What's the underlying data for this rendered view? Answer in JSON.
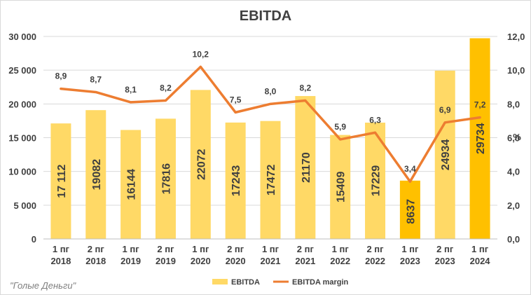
{
  "chart_data": {
    "type": "bar",
    "title": "EBITDA",
    "categories": [
      [
        "1 пг",
        "2018"
      ],
      [
        "2 пг",
        "2018"
      ],
      [
        "1 пг",
        "2019"
      ],
      [
        "2 пг",
        "2019"
      ],
      [
        "1 пг",
        "2020"
      ],
      [
        "2 пг",
        "2020"
      ],
      [
        "1 пг",
        "2021"
      ],
      [
        "2 пг",
        "2021"
      ],
      [
        "1 пг",
        "2022"
      ],
      [
        "2 пг",
        "2022"
      ],
      [
        "1 пг",
        "2023"
      ],
      [
        "2 пг",
        "2023"
      ],
      [
        "1 пг",
        "2024"
      ]
    ],
    "series": [
      {
        "name": "EBITDA",
        "type": "bar",
        "axis": "left",
        "values": [
          17112,
          19082,
          16144,
          17816,
          22072,
          17243,
          17472,
          21170,
          15409,
          17229,
          8637,
          24934,
          29734
        ],
        "labels": [
          "17 112",
          "19082",
          "16144",
          "17816",
          "22072",
          "17243",
          "17472",
          "21170",
          "15409",
          "17229",
          "8637",
          "24934",
          "29734"
        ],
        "color": "#ffd966",
        "highlight_color": "#ffc000",
        "highlight_index": [
          10,
          12
        ]
      },
      {
        "name": "EBITDA margin",
        "type": "line",
        "axis": "right",
        "values": [
          8.9,
          8.7,
          8.1,
          8.2,
          10.2,
          7.5,
          8.0,
          8.2,
          5.9,
          6.3,
          3.4,
          6.9,
          7.2
        ],
        "labels": [
          "8,9",
          "8,7",
          "8,1",
          "8,2",
          "10,2",
          "7,5",
          "8,0",
          "8,2",
          "5,9",
          "6,3",
          "3,4",
          "6,9",
          "7,2"
        ],
        "color": "#ed7d31"
      }
    ],
    "y_left": {
      "lim": [
        0,
        30000
      ],
      "ticks": [
        0,
        5000,
        10000,
        15000,
        20000,
        25000,
        30000
      ],
      "tick_labels": [
        "0",
        "5 000",
        "10 000",
        "15 000",
        "20 000",
        "25 000",
        "30 000"
      ]
    },
    "y_right": {
      "lim": [
        0,
        12
      ],
      "ticks": [
        0,
        2,
        4,
        6,
        8,
        10,
        12
      ],
      "tick_labels": [
        "0,0",
        "2,0",
        "4,0",
        "6,0",
        "8,0",
        "10,0",
        "12,0"
      ],
      "label": "%"
    },
    "grid": true,
    "legend_position": "bottom"
  },
  "source_text": "\"Голые Деньги\""
}
